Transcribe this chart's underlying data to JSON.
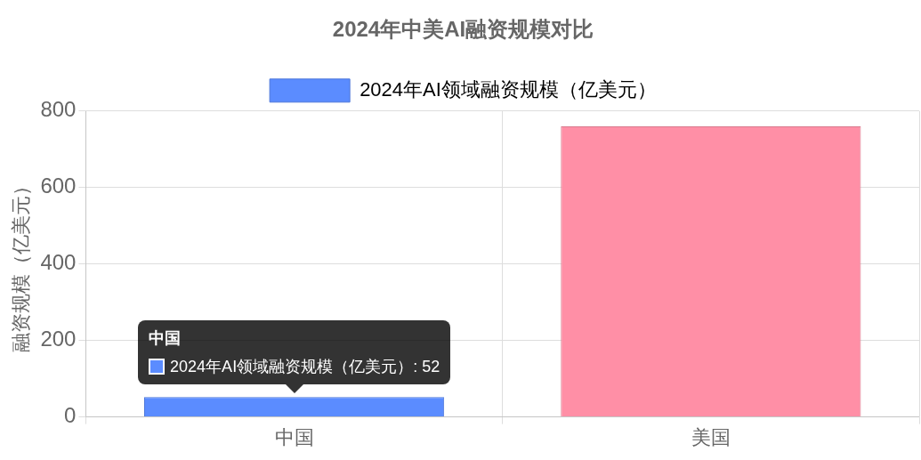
{
  "chart_data": {
    "type": "bar",
    "title": "2024年中美AI融资规模对比",
    "ylabel": "融资规模（亿美元）",
    "categories": [
      "中国",
      "美国"
    ],
    "series": [
      {
        "name": "2024年AI领域融资规模（亿美元）",
        "color": "#5b8cff",
        "colors": [
          "#5b8cff",
          "#ff8fa6"
        ],
        "values": [
          52,
          760
        ]
      }
    ],
    "ylim": [
      0,
      800
    ],
    "yticks": [
      0,
      200,
      400,
      600,
      800
    ],
    "grid": true,
    "legend": "top",
    "annotations": [
      "中国",
      {
        "text": "2024年AI领域融资规模（亿美元）: 52",
        "x": "中国",
        "y": 52
      }
    ]
  }
}
